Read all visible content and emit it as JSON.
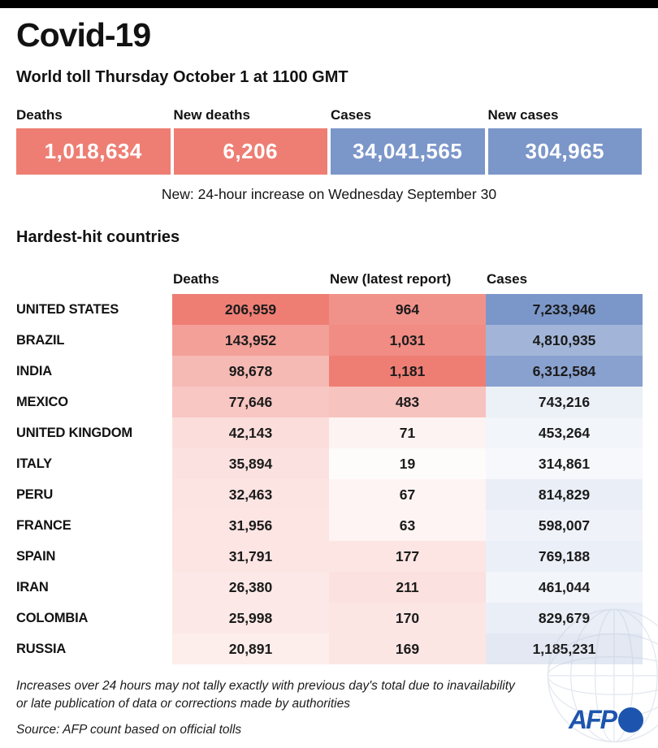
{
  "header": {
    "title": "Covid-19",
    "subtitle": "World toll Thursday October 1 at 1100 GMT"
  },
  "summary": {
    "stats": [
      {
        "label": "Deaths",
        "value": "1,018,634",
        "color": "#ee7e74"
      },
      {
        "label": "New deaths",
        "value": "6,206",
        "color": "#ee7e74"
      },
      {
        "label": "Cases",
        "value": "34,041,565",
        "color": "#7b96c9"
      },
      {
        "label": "New cases",
        "value": "304,965",
        "color": "#7b96c9"
      }
    ],
    "note": "New: 24-hour increase on Wednesday September 30"
  },
  "chart_data": {
    "type": "table",
    "title": "Hardest-hit countries",
    "columns": [
      "Deaths",
      "New (latest report)",
      "Cases"
    ],
    "countries": [
      "UNITED STATES",
      "BRAZIL",
      "INDIA",
      "MEXICO",
      "UNITED KINGDOM",
      "ITALY",
      "PERU",
      "FRANCE",
      "SPAIN",
      "IRAN",
      "COLOMBIA",
      "RUSSIA"
    ],
    "series": [
      {
        "name": "Deaths",
        "heat_color": "#ee7e74",
        "values": [
          206959,
          143952,
          98678,
          77646,
          42143,
          35894,
          32463,
          31956,
          31791,
          26380,
          25998,
          20891
        ]
      },
      {
        "name": "New (latest report)",
        "heat_color": "#ee7e74",
        "values": [
          964,
          1031,
          1181,
          483,
          71,
          19,
          67,
          63,
          177,
          211,
          170,
          169
        ]
      },
      {
        "name": "Cases",
        "heat_color": "#7b96c9",
        "values": [
          7233946,
          4810935,
          6312584,
          743216,
          453264,
          314861,
          814829,
          598007,
          769188,
          461044,
          829679,
          1185231
        ]
      }
    ]
  },
  "footer": {
    "disclaimer_line1": "Increases over 24 hours may not tally exactly with previous day's total due to inavailability",
    "disclaimer_line2": "or late publication of data or corrections made by authorities",
    "source": "Source: AFP count based on official tolls",
    "logo_text": "AFP",
    "logo_color": "#1d55ae"
  }
}
